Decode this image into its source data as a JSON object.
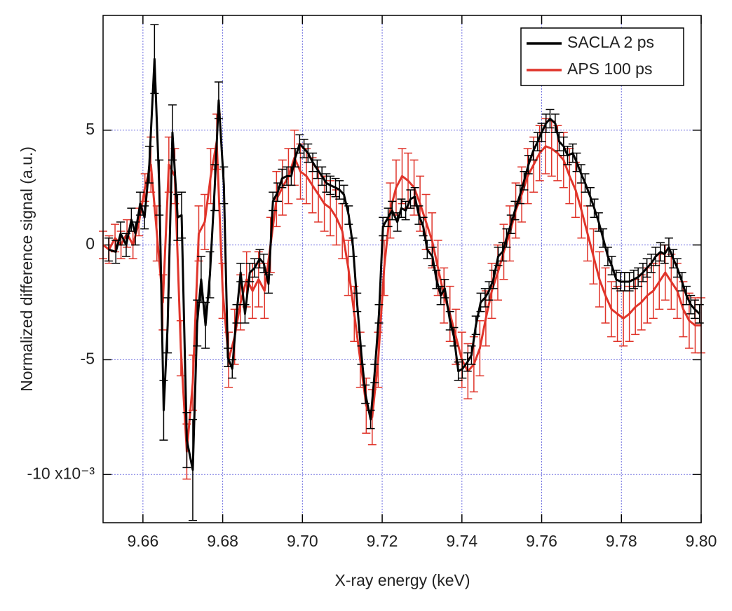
{
  "chart_data": {
    "type": "line",
    "xlabel": "X-ray energy (keV)",
    "ylabel": "Normalized difference signal (a.u.)",
    "xlim": [
      9.65,
      9.8
    ],
    "ylim": [
      -12.1,
      10
    ],
    "xticks": [
      9.66,
      9.68,
      {
        "value": 9.7,
        "label": "9.70"
      },
      9.72,
      9.74,
      9.76,
      9.78,
      {
        "value": 9.8,
        "label": "9.80"
      }
    ],
    "yticks": [
      {
        "value": -10,
        "label": "-10 x10⁻³"
      },
      -5,
      0,
      5
    ],
    "grid": true,
    "grid_color": "#7070e0",
    "legend": "upper right",
    "series": [
      {
        "name": "APS 100 ps",
        "color": "#e0342a",
        "x": [
          9.65,
          9.6515,
          9.653,
          9.6545,
          9.656,
          9.6575,
          9.659,
          9.6605,
          9.662,
          9.6635,
          9.665,
          9.6665,
          9.668,
          9.6695,
          9.671,
          9.6725,
          9.674,
          9.6755,
          9.677,
          9.6785,
          9.68,
          9.6815,
          9.683,
          9.6845,
          9.686,
          9.6875,
          9.689,
          9.6905,
          9.692,
          9.6935,
          9.695,
          9.6965,
          9.698,
          9.6995,
          9.701,
          9.7025,
          9.704,
          9.7055,
          9.707,
          9.7085,
          9.71,
          9.7115,
          9.713,
          9.7145,
          9.716,
          9.7175,
          9.719,
          9.7205,
          9.722,
          9.7235,
          9.725,
          9.7265,
          9.728,
          9.7295,
          9.731,
          9.7325,
          9.734,
          9.7355,
          9.737,
          9.7385,
          9.74,
          9.7415,
          9.743,
          9.7445,
          9.746,
          9.7475,
          9.749,
          9.7505,
          9.752,
          9.7535,
          9.755,
          9.7565,
          9.758,
          9.7595,
          9.761,
          9.7625,
          9.764,
          9.7655,
          9.767,
          9.7685,
          9.77,
          9.7715,
          9.773,
          9.7745,
          9.776,
          9.7775,
          9.779,
          9.7805,
          9.782,
          9.7835,
          9.785,
          9.7865,
          9.788,
          9.7895,
          9.791,
          9.7925,
          9.794,
          9.7955,
          9.797,
          9.7985,
          9.8
        ],
        "values": [
          0,
          -0.2,
          0.3,
          0,
          0.5,
          0,
          1.0,
          2.5,
          3.5,
          0.5,
          -2.5,
          3.5,
          3.0,
          -4.5,
          -9.0,
          -6,
          0.5,
          1.0,
          3.0,
          4.5,
          -2,
          -5,
          -4,
          -2.5,
          -1.5,
          -2,
          -1.5,
          -2,
          0,
          2,
          2.5,
          3.0,
          3.8,
          3.2,
          3.0,
          2.6,
          2.2,
          1.8,
          1.6,
          1.2,
          0.6,
          -1,
          -3,
          -5,
          -7,
          -7.5,
          -5,
          -1,
          1.5,
          2.5,
          3.0,
          2.8,
          2.5,
          1.8,
          1.0,
          0.2,
          -1.0,
          -2.2,
          -3.0,
          -4.0,
          -5.0,
          -5.5,
          -5.2,
          -4.5,
          -3.2,
          -2.0,
          -1.2,
          -0.3,
          0.5,
          1.5,
          2.2,
          3.0,
          3.5,
          4.0,
          4.3,
          4.2,
          4.0,
          3.7,
          3.0,
          2.4,
          1.5,
          0.5,
          -0.5,
          -1.5,
          -2.2,
          -2.8,
          -3.0,
          -3.2,
          -3.0,
          -2.7,
          -2.5,
          -2.2,
          -2.0,
          -1.6,
          -1.2,
          -1.6,
          -2.0,
          -2.8,
          -3.3,
          -3.5,
          -3.5
        ],
        "errors": [
          0.6,
          0.6,
          0.6,
          0.6,
          0.6,
          0.6,
          0.6,
          0.6,
          1.2,
          1.2,
          1.2,
          1.2,
          1.2,
          1.2,
          1.2,
          1.2,
          1.2,
          1.2,
          1.2,
          1.2,
          1.2,
          1.2,
          1.2,
          1.2,
          1.2,
          1.2,
          1.2,
          1.2,
          1.2,
          1.2,
          1.2,
          1.2,
          1.2,
          1.2,
          1.2,
          1.2,
          1.2,
          1.2,
          1.2,
          1.2,
          1.2,
          1.2,
          1.2,
          1.2,
          1.2,
          1.2,
          1.2,
          1.2,
          1.2,
          1.2,
          1.2,
          1.2,
          1.2,
          1.2,
          1.2,
          1.2,
          1.2,
          1.2,
          1.2,
          1.2,
          1.2,
          1.2,
          1.2,
          1.2,
          1.2,
          1.2,
          1.2,
          1.2,
          1.2,
          1.2,
          1.2,
          1.2,
          1.2,
          1.2,
          1.2,
          1.2,
          1.2,
          1.2,
          1.2,
          1.2,
          1.2,
          1.2,
          1.2,
          1.2,
          1.2,
          1.2,
          1.2,
          1.2,
          1.2,
          1.2,
          1.2,
          1.2,
          1.2,
          1.2,
          1.2,
          1.2,
          1.2,
          1.2,
          1.2,
          1.2,
          1.2
        ]
      },
      {
        "name": "SACLA 2 ps",
        "color": "#000000",
        "x": [
          9.6514,
          9.6532,
          9.6544,
          9.6558,
          9.6571,
          9.6581,
          9.6593,
          9.6604,
          9.6616,
          9.6629,
          9.6641,
          9.6652,
          9.6662,
          9.6674,
          9.6687,
          9.6697,
          9.671,
          9.6725,
          9.6736,
          9.6746,
          9.6757,
          9.6768,
          9.678,
          9.679,
          9.6803,
          9.6813,
          9.6824,
          9.6835,
          9.6845,
          9.6856,
          9.6868,
          9.688,
          9.6893,
          9.6903,
          9.6915,
          9.6926,
          9.6938,
          9.6949,
          9.6961,
          9.6972,
          9.6982,
          9.6993,
          9.7004,
          9.7014,
          9.7026,
          9.7037,
          9.7049,
          9.706,
          9.707,
          9.7083,
          9.7093,
          9.7104,
          9.7116,
          9.7127,
          9.7137,
          9.7148,
          9.7158,
          9.7171,
          9.7181,
          9.7192,
          9.7202,
          9.7215,
          9.7225,
          9.7238,
          9.7248,
          9.7259,
          9.7271,
          9.7282,
          9.7292,
          9.7303,
          9.7313,
          9.7326,
          9.7336,
          9.7347,
          9.7357,
          9.737,
          9.738,
          9.7391,
          9.7401,
          9.7414,
          9.7424,
          9.7435,
          9.7447,
          9.7458,
          9.7468,
          9.7479,
          9.7491,
          9.7502,
          9.7512,
          9.7523,
          9.7533,
          9.7546,
          9.7556,
          9.7567,
          9.7579,
          9.759,
          9.76,
          9.7611,
          9.7621,
          9.7634,
          9.7644,
          9.7655,
          9.7665,
          9.7678,
          9.7688,
          9.7699,
          9.7709,
          9.7722,
          9.7732,
          9.7743,
          9.7754,
          9.7766,
          9.7776,
          9.7787,
          9.7798,
          9.7808,
          9.782,
          9.7831,
          9.7842,
          9.7854,
          9.7864,
          9.7875,
          9.7886,
          9.7898,
          9.7908,
          9.7919,
          9.793,
          9.794,
          9.7952,
          9.7963,
          9.7974,
          9.7984,
          9.7996
        ],
        "values": [
          -0.2,
          -0.3,
          0.5,
          0,
          1.1,
          0.5,
          1.8,
          1.2,
          3.5,
          8.1,
          2.5,
          -7.2,
          -3.5,
          4.9,
          1.2,
          1.3,
          -8.5,
          -9.8,
          -3.4,
          -1.5,
          -3.5,
          -1.3,
          2.5,
          6.3,
          2.6,
          -4.9,
          -5.4,
          -3,
          -1.2,
          -3,
          -1.2,
          -1,
          -0.6,
          -0.8,
          -1.7,
          1.9,
          2.3,
          2.9,
          3,
          3.0,
          3.8,
          4.4,
          4.2,
          4.0,
          3.6,
          3.3,
          3.0,
          2.7,
          2.6,
          2.5,
          2.4,
          2.2,
          1.3,
          -0.1,
          -2.5,
          -4.8,
          -6.5,
          -7.6,
          -5.6,
          -3,
          0.8,
          1.2,
          1.5,
          1.0,
          1.6,
          1.5,
          2.0,
          2.1,
          1.3,
          0.8,
          -0.2,
          -0.5,
          -1.5,
          -2.2,
          -1.9,
          -3.3,
          -4,
          -5.5,
          -5.4,
          -5.1,
          -4.8,
          -3.5,
          -2.5,
          -2.3,
          -2,
          -1.5,
          -0.5,
          -0.3,
          0.3,
          0.9,
          1.5,
          2.2,
          2.8,
          3.5,
          4.1,
          4.5,
          4.9,
          5.3,
          5.5,
          5.3,
          4.5,
          4.3,
          3.9,
          4.0,
          3.6,
          3.1,
          2.7,
          2.1,
          1.6,
          1.0,
          0.3,
          -0.5,
          -0.9,
          -1.5,
          -1.6,
          -1.6,
          -1.6,
          -1.5,
          -1.4,
          -1.2,
          -1.0,
          -0.8,
          -0.5,
          -0.3,
          -0.4,
          -0.1,
          -0.6,
          -1.0,
          -1.6,
          -2.2,
          -2.6,
          -2.8,
          -3.0
        ],
        "errors": [
          0.5,
          0.5,
          0.5,
          0.5,
          0.5,
          0.5,
          0.5,
          0.5,
          0.8,
          1.5,
          1.2,
          1.3,
          1.2,
          1.2,
          1.0,
          1.0,
          1.2,
          2.2,
          1.0,
          1.0,
          1.0,
          1.0,
          1.0,
          0.8,
          0.8,
          0.4,
          0.4,
          0.4,
          0.4,
          0.4,
          0.4,
          0.4,
          0.4,
          0.4,
          0.4,
          0.4,
          0.4,
          0.4,
          0.4,
          0.4,
          0.4,
          0.4,
          0.4,
          0.4,
          0.4,
          0.4,
          0.4,
          0.4,
          0.4,
          0.4,
          0.4,
          0.4,
          0.4,
          0.4,
          0.4,
          0.4,
          0.4,
          0.4,
          0.4,
          0.4,
          0.4,
          0.4,
          0.4,
          0.4,
          0.4,
          0.4,
          0.4,
          0.4,
          0.4,
          0.4,
          0.4,
          0.4,
          0.4,
          0.4,
          0.4,
          0.4,
          0.4,
          0.4,
          0.4,
          0.4,
          0.4,
          0.4,
          0.4,
          0.4,
          0.4,
          0.4,
          0.4,
          0.4,
          0.4,
          0.4,
          0.4,
          0.4,
          0.4,
          0.4,
          0.4,
          0.4,
          0.4,
          0.4,
          0.4,
          0.4,
          0.4,
          0.4,
          0.4,
          0.4,
          0.4,
          0.4,
          0.4,
          0.4,
          0.4,
          0.4,
          0.4,
          0.4,
          0.4,
          0.4,
          0.4,
          0.4,
          0.4,
          0.4,
          0.4,
          0.4,
          0.4,
          0.4,
          0.4,
          0.4,
          0.4,
          0.4,
          0.4,
          0.4,
          0.4,
          0.4,
          0.4,
          0.4,
          0.4
        ]
      }
    ]
  }
}
